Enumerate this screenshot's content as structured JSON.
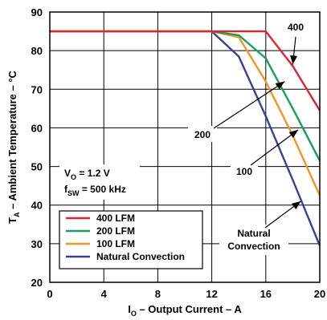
{
  "chart_data": {
    "type": "line",
    "xlabel": {
      "main": "I",
      "sub": "O",
      "rest": " – Output Current – A"
    },
    "ylabel": {
      "main": "T",
      "sub": "A",
      "rest": " – Ambient Temperature – °C"
    },
    "xlim": [
      0,
      20
    ],
    "ylim": [
      20,
      90
    ],
    "x_ticks": [
      0,
      4,
      8,
      12,
      16,
      20
    ],
    "y_ticks": [
      20,
      30,
      40,
      50,
      60,
      70,
      80,
      90
    ],
    "grid": true,
    "legend_position": "bottom-left",
    "conditions": [
      {
        "main": "V",
        "sub": "O",
        "rest": " = 1.2 V"
      },
      {
        "main": "f",
        "sub": "SW",
        "rest": " = 500 kHz"
      }
    ],
    "series": [
      {
        "name": "400 LFM",
        "color": "#e8202a",
        "points": [
          [
            0,
            85
          ],
          [
            16,
            85
          ],
          [
            18,
            76
          ],
          [
            20,
            64.5
          ]
        ]
      },
      {
        "name": "200 LFM",
        "color": "#12a05a",
        "points": [
          [
            0,
            85
          ],
          [
            12,
            85
          ],
          [
            14,
            84
          ],
          [
            16,
            78
          ],
          [
            18,
            65
          ],
          [
            20,
            51.5
          ]
        ]
      },
      {
        "name": "100 LFM",
        "color": "#f7941d",
        "points": [
          [
            0,
            85
          ],
          [
            12,
            85
          ],
          [
            14,
            83.5
          ],
          [
            16,
            72
          ],
          [
            18,
            58
          ],
          [
            20,
            42.5
          ]
        ]
      },
      {
        "name": "Natural Convection",
        "color": "#3b3e9c",
        "points": [
          [
            0,
            85
          ],
          [
            12,
            85
          ],
          [
            14,
            78.5
          ],
          [
            16,
            63
          ],
          [
            18,
            46.5
          ],
          [
            20,
            29.5
          ]
        ]
      }
    ],
    "annotations": [
      {
        "text": "400",
        "series": "400 LFM"
      },
      {
        "text": "200",
        "series": "200 LFM"
      },
      {
        "text": "100",
        "series": "100 LFM"
      },
      {
        "text": [
          "Natural",
          "Convection"
        ],
        "series": "Natural Convection"
      }
    ]
  }
}
